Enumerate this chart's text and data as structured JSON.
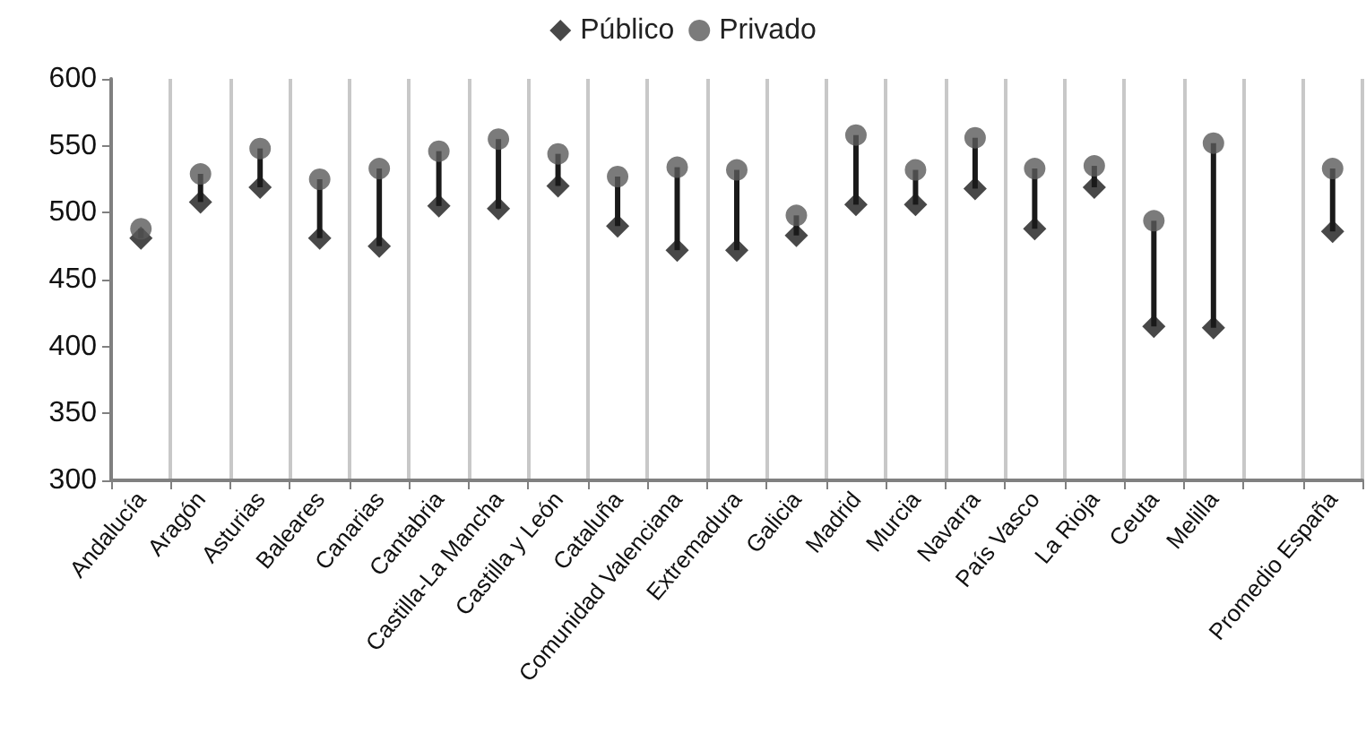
{
  "chart_data": {
    "type": "scatter",
    "categories": [
      "Andalucía",
      "Aragón",
      "Asturias",
      "Baleares",
      "Canarias",
      "Cantabria",
      "Castilla-La Mancha",
      "Castilla y León",
      "Cataluña",
      "Comunidad Valenciana",
      "Extremadura",
      "Galicia",
      "Madrid",
      "Murcia",
      "Navarra",
      "País Vasco",
      "La Rioja",
      "Ceuta",
      "Melilla",
      null,
      "Promedio España"
    ],
    "series": [
      {
        "name": "Público",
        "color": "#1a1a1a",
        "marker": "diamond",
        "values": [
          481,
          508,
          519,
          481,
          475,
          505,
          503,
          520,
          490,
          472,
          472,
          483,
          506,
          506,
          518,
          488,
          519,
          415,
          414,
          null,
          486
        ]
      },
      {
        "name": "Privado",
        "color": "#5a5a5a",
        "marker": "circle",
        "values": [
          488,
          529,
          548,
          525,
          533,
          546,
          555,
          544,
          527,
          534,
          532,
          498,
          558,
          532,
          556,
          533,
          535,
          494,
          552,
          null,
          533
        ]
      }
    ],
    "ylim": [
      300,
      600
    ],
    "yticks": [
      300,
      350,
      400,
      450,
      500,
      550,
      600
    ],
    "grid": "x",
    "legend": "top"
  }
}
